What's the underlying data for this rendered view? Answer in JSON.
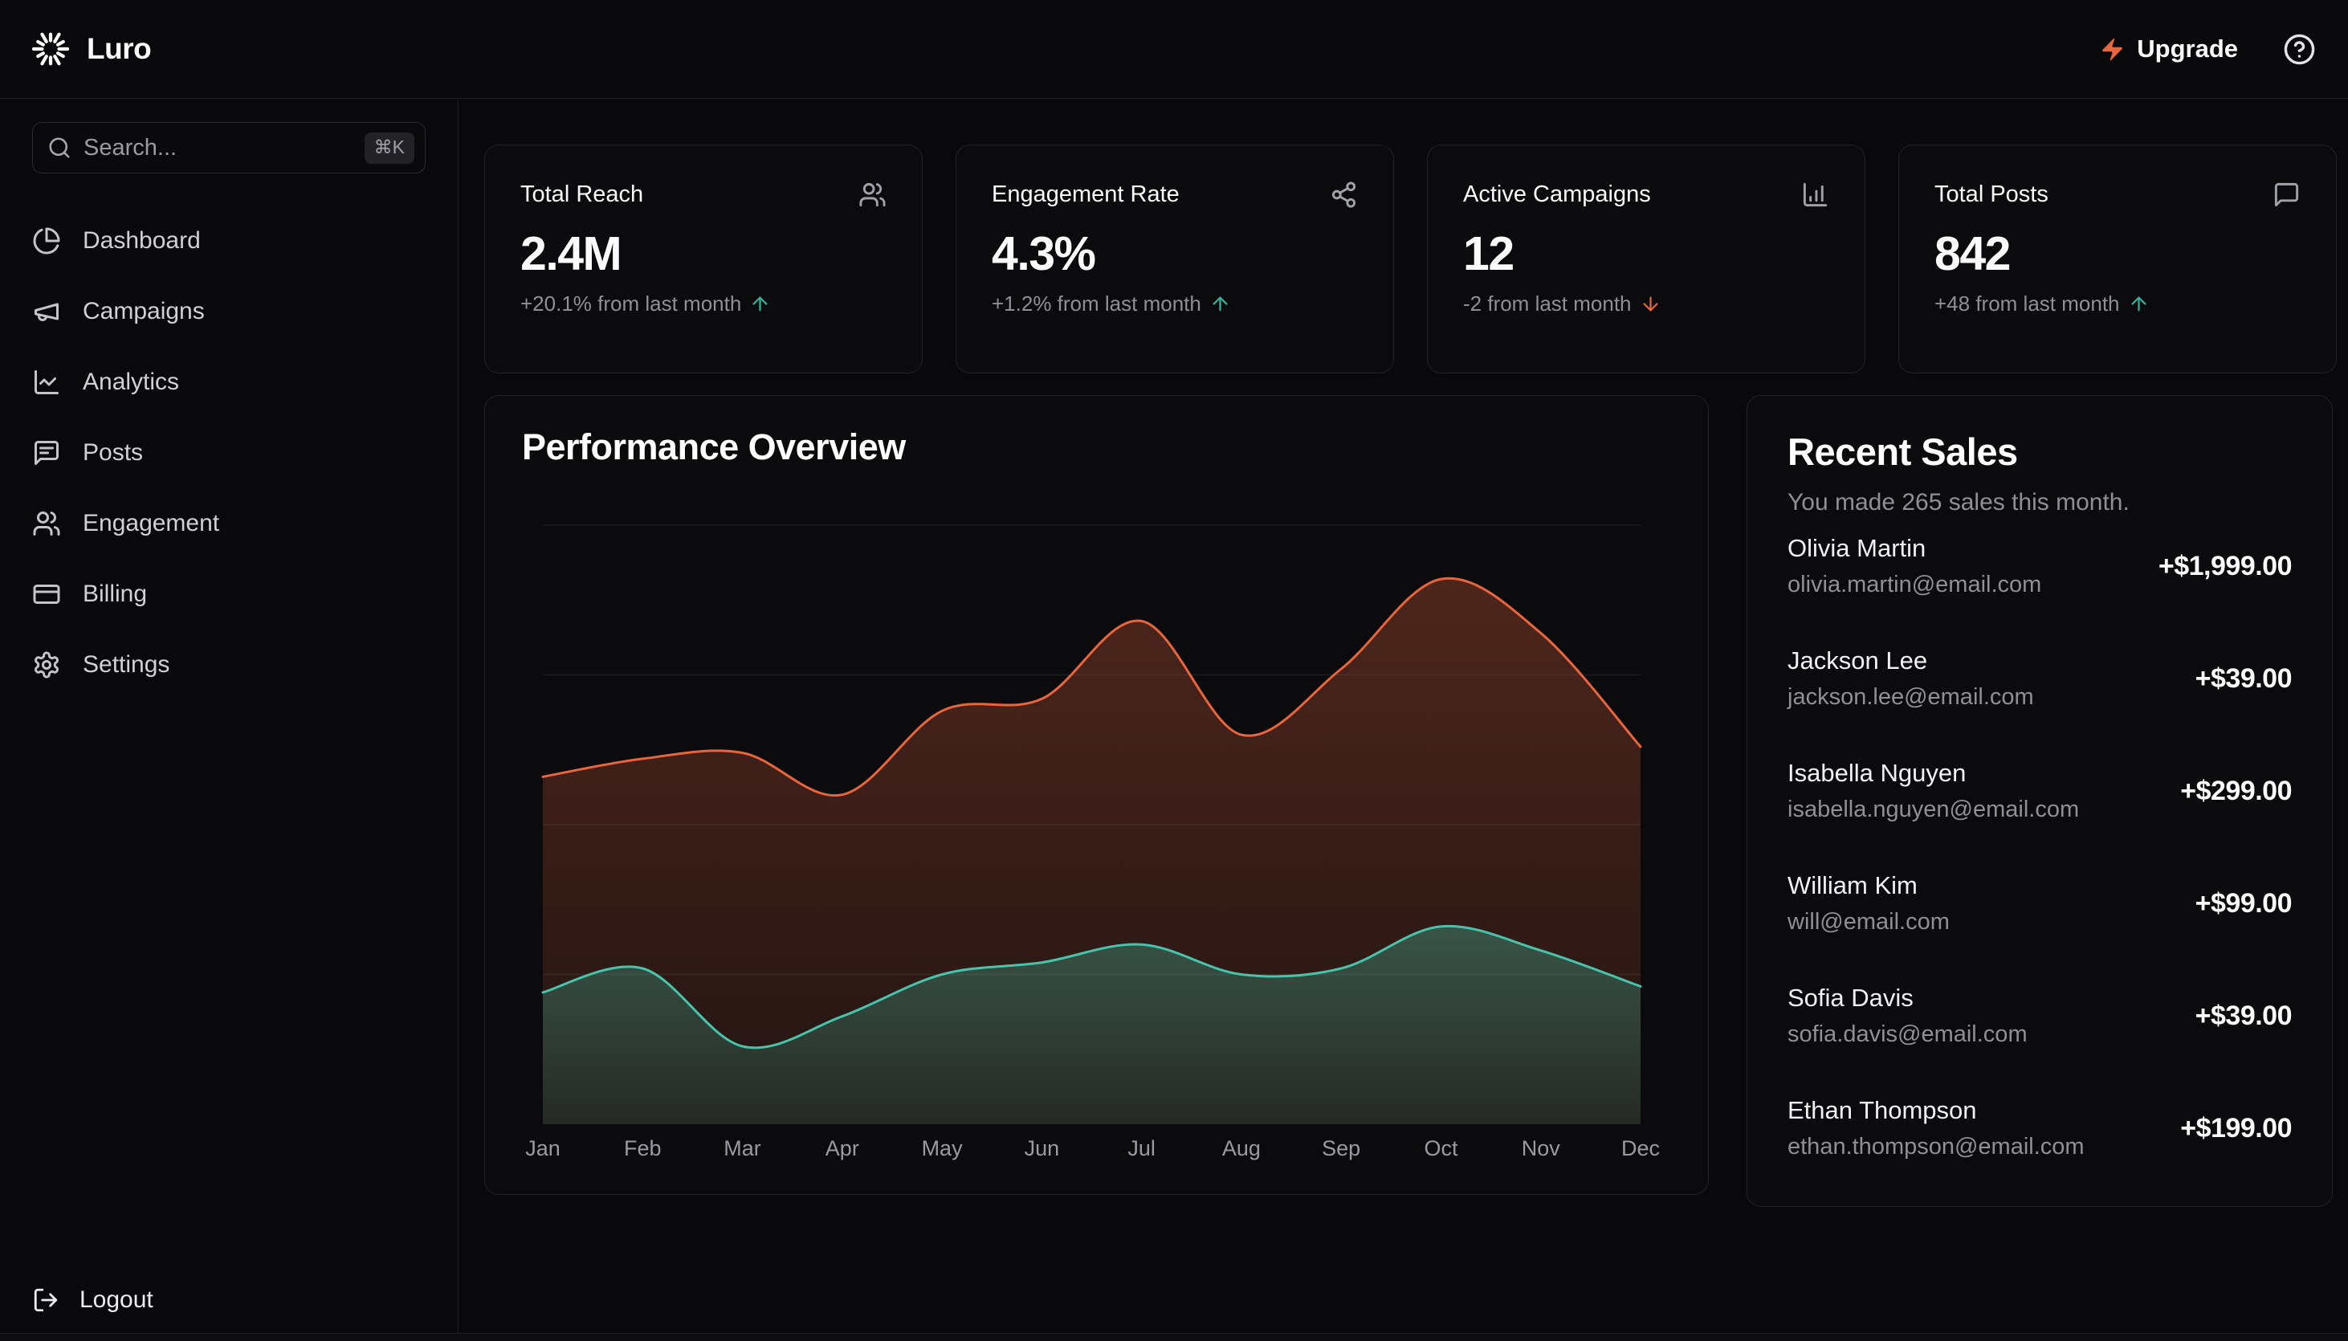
{
  "topbar": {
    "brand": "Luro",
    "upgrade_label": "Upgrade"
  },
  "sidebar": {
    "search_placeholder": "Search...",
    "search_shortcut": "⌘K",
    "items": [
      {
        "label": "Dashboard",
        "icon": "pie-chart-icon"
      },
      {
        "label": "Campaigns",
        "icon": "megaphone-icon"
      },
      {
        "label": "Analytics",
        "icon": "line-chart-icon"
      },
      {
        "label": "Posts",
        "icon": "message-square-text-icon"
      },
      {
        "label": "Engagement",
        "icon": "users-icon"
      },
      {
        "label": "Billing",
        "icon": "credit-card-icon"
      },
      {
        "label": "Settings",
        "icon": "gear-icon"
      }
    ],
    "logout_label": "Logout"
  },
  "stats": [
    {
      "title": "Total Reach",
      "icon": "users-icon",
      "value": "2.4M",
      "change": "+20.1% from last month",
      "trend": "up"
    },
    {
      "title": "Engagement Rate",
      "icon": "share-icon",
      "value": "4.3%",
      "change": "+1.2% from last month",
      "trend": "up"
    },
    {
      "title": "Active Campaigns",
      "icon": "bar-chart-icon",
      "value": "12",
      "change": "-2 from last month",
      "trend": "down"
    },
    {
      "title": "Total Posts",
      "icon": "message-square-icon",
      "value": "842",
      "change": "+48 from last month",
      "trend": "up"
    }
  ],
  "performance": {
    "title": "Performance Overview"
  },
  "recent_sales": {
    "title": "Recent Sales",
    "subtitle": "You made 265 sales this month.",
    "sales": [
      {
        "name": "Olivia Martin",
        "email": "olivia.martin@email.com",
        "amount": "+$1,999.00"
      },
      {
        "name": "Jackson Lee",
        "email": "jackson.lee@email.com",
        "amount": "+$39.00"
      },
      {
        "name": "Isabella Nguyen",
        "email": "isabella.nguyen@email.com",
        "amount": "+$299.00"
      },
      {
        "name": "William Kim",
        "email": "will@email.com",
        "amount": "+$99.00"
      },
      {
        "name": "Sofia Davis",
        "email": "sofia.davis@email.com",
        "amount": "+$39.00"
      },
      {
        "name": "Ethan Thompson",
        "email": "ethan.thompson@email.com",
        "amount": "+$199.00"
      }
    ]
  },
  "chart_data": {
    "type": "area",
    "title": "Performance Overview",
    "x": [
      "Jan",
      "Feb",
      "Mar",
      "Apr",
      "May",
      "Jun",
      "Jul",
      "Aug",
      "Sep",
      "Oct",
      "Nov",
      "Dec"
    ],
    "series": [
      {
        "name": "orange",
        "color": "#e8653d",
        "values": [
          58,
          61,
          62,
          55,
          69,
          71,
          84,
          65,
          76,
          91,
          82,
          63
        ]
      },
      {
        "name": "teal",
        "color": "#47c4a9",
        "values": [
          22,
          26,
          13,
          18,
          25,
          27,
          30,
          25,
          26,
          33,
          29,
          23
        ]
      }
    ],
    "ylim": [
      0,
      107
    ],
    "gridline_values": [
      25,
      50,
      75,
      100
    ],
    "grid": "horizontal-only",
    "legend": "none",
    "y_axis_labels": "none"
  },
  "colors": {
    "background": "#09090b",
    "card_border": "#232328",
    "accent_orange": "#e8653d",
    "accent_teal": "#47c4a9",
    "positive_green": "#34b39b",
    "text_muted": "#8f8f96"
  }
}
